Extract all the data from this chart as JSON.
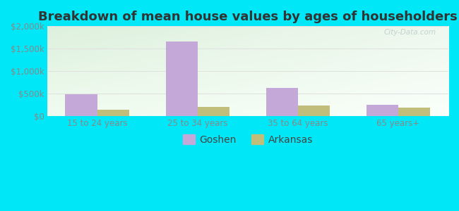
{
  "title": "Breakdown of mean house values by ages of householders",
  "categories": [
    "15 to 24 years",
    "25 to 34 years",
    "35 to 64 years",
    "65 years+"
  ],
  "goshen_values": [
    490000,
    1660000,
    620000,
    250000
  ],
  "arkansas_values": [
    135000,
    195000,
    230000,
    190000
  ],
  "goshen_color": "#c4a8d8",
  "arkansas_color": "#c0be7a",
  "ylim": [
    0,
    2000000
  ],
  "yticks": [
    0,
    500000,
    1000000,
    1500000,
    2000000
  ],
  "ytick_labels": [
    "$0",
    "$500k",
    "$1,000k",
    "$1,500k",
    "$2,000k"
  ],
  "legend_labels": [
    "Goshen",
    "Arkansas"
  ],
  "watermark": "City-Data.com",
  "background_outer": "#00e8f8",
  "bg_top_left": "#ddf0dd",
  "bg_bottom_right": "#f8fff8",
  "bar_width": 0.32,
  "title_fontsize": 13,
  "tick_fontsize": 8.5,
  "legend_fontsize": 10
}
